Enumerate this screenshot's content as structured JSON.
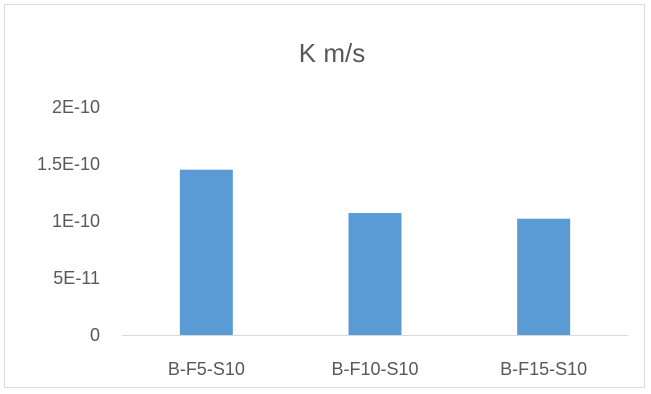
{
  "chart_data": {
    "type": "bar",
    "title": "K m/s",
    "categories": [
      "B-F5-S10",
      "B-F10-S10",
      "B-F15-S10"
    ],
    "values": [
      1.45e-10,
      1.07e-10,
      1.02e-10
    ],
    "ylim": [
      0,
      2e-10
    ],
    "yticks": [
      0,
      5e-11,
      1e-10,
      1.5e-10,
      2e-10
    ],
    "ytick_labels": [
      "0",
      "5E-11",
      "1E-10",
      "1.5E-10",
      "2E-10"
    ],
    "xlabel": "",
    "ylabel": "",
    "grid": false,
    "legend": "none",
    "bar_color": "#5b9bd5",
    "axis_color": "#d9d9d9",
    "text_color": "#595959"
  }
}
